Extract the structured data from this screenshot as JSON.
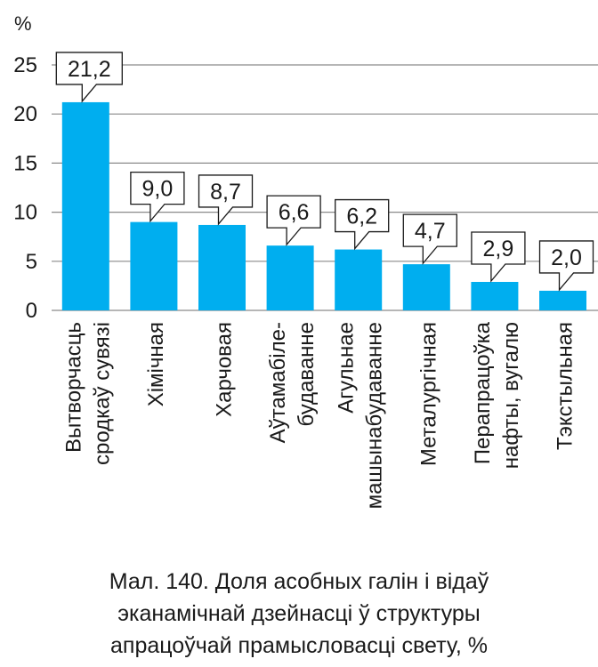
{
  "chart_data": {
    "type": "bar",
    "ylabel": "%",
    "ylim": [
      0,
      25
    ],
    "yticks": [
      0,
      5,
      10,
      15,
      20,
      25
    ],
    "ytick_labels": [
      "0",
      "5",
      "10",
      "15",
      "20",
      "25"
    ],
    "grid": true,
    "bar_color": "#00aeef",
    "categories": [
      [
        "Вытворчасць",
        "сродкаў сувязі"
      ],
      [
        "Хімічная"
      ],
      [
        "Харчовая"
      ],
      [
        "Аўтамабіле-",
        "будаванне"
      ],
      [
        "Агульнае",
        "машынабудаванне"
      ],
      [
        "Металургічная"
      ],
      [
        "Перапрацоўка",
        "нафты, вугалю"
      ],
      [
        "Тэкстыльная"
      ]
    ],
    "values": [
      21.2,
      9.0,
      8.7,
      6.6,
      6.2,
      4.7,
      2.9,
      2.0
    ],
    "value_labels": [
      "21,2",
      "9,0",
      "8,7",
      "6,6",
      "6,2",
      "4,7",
      "2,9",
      "2,0"
    ]
  },
  "caption": {
    "lines": [
      "Мал. 140. Доля асобных галін і відаў",
      "эканамічнай дзейнасці ў структуры",
      "апрацоўчай прамысловасці свету, %"
    ]
  }
}
